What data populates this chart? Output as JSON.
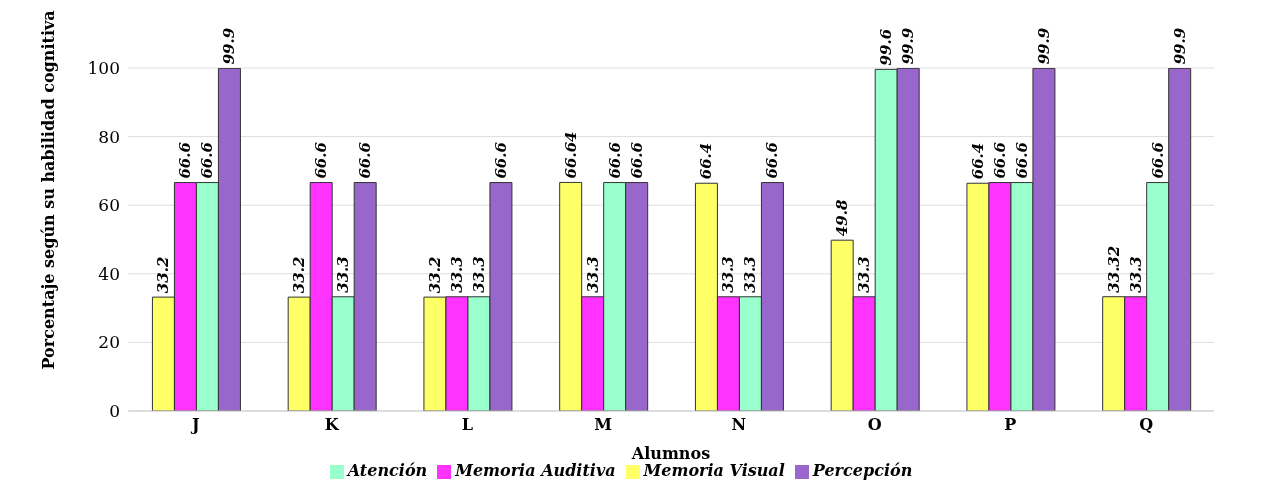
{
  "chart_data": {
    "type": "bar",
    "xlabel": "Alumnos",
    "ylabel": "Porcentaje según su habilidad cognitiva",
    "categories": [
      "J",
      "K",
      "L",
      "M",
      "N",
      "O",
      "P",
      "Q"
    ],
    "series": [
      {
        "name": "Memoria Visual",
        "color": "#ffff66",
        "values": [
          33.2,
          33.2,
          33.2,
          66.64,
          66.4,
          49.8,
          66.4,
          33.32
        ]
      },
      {
        "name": "Memoria Auditiva",
        "color": "#ff33ff",
        "values": [
          66.6,
          66.6,
          33.3,
          33.3,
          33.3,
          33.3,
          66.6,
          33.3
        ]
      },
      {
        "name": "Atención",
        "color": "#99ffcc",
        "values": [
          66.6,
          33.3,
          33.3,
          66.6,
          33.3,
          99.6,
          66.6,
          66.6
        ]
      },
      {
        "name": "Percepción",
        "color": "#9966cc",
        "values": [
          99.9,
          66.6,
          66.6,
          66.6,
          66.6,
          99.9,
          99.9,
          99.9
        ]
      }
    ],
    "ylim": [
      0,
      100
    ],
    "yticks": [
      0,
      20,
      40,
      60,
      80,
      100
    ],
    "grid": "y",
    "legend": "bottom",
    "data_labels": true
  }
}
